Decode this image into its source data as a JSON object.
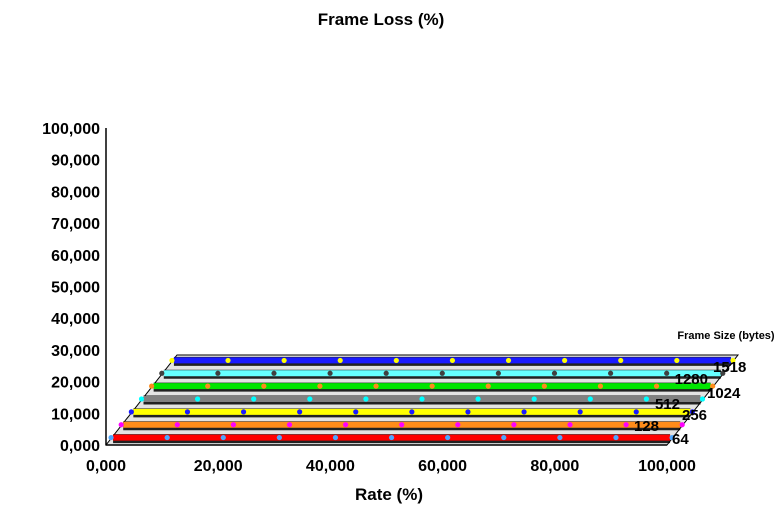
{
  "chart_data": {
    "type": "line",
    "title": "Frame Loss (%)",
    "xlabel": "Rate (%)",
    "ylabel": "",
    "depth_title": "Frame Size (bytes)",
    "xlim": [
      0,
      100
    ],
    "ylim": [
      0,
      100
    ],
    "x_tick_labels": [
      "0,000",
      "20,000",
      "40,000",
      "60,000",
      "80,000",
      "100,000"
    ],
    "y_tick_labels": [
      "0,000",
      "10,000",
      "20,000",
      "30,000",
      "40,000",
      "50,000",
      "60,000",
      "70,000",
      "80,000",
      "90,000",
      "100,000"
    ],
    "x": [
      10,
      20,
      30,
      40,
      50,
      60,
      70,
      80,
      90,
      100
    ],
    "series": [
      {
        "name": "64",
        "color": "#ff0000",
        "marker_color": "#4da6ff",
        "values": [
          0,
          0,
          0,
          0,
          0,
          0,
          0,
          0,
          0,
          0
        ]
      },
      {
        "name": "128",
        "color": "#ff8c1a",
        "marker_color": "#ff00ff",
        "values": [
          0,
          0,
          0,
          0,
          0,
          0,
          0,
          0,
          0,
          0
        ]
      },
      {
        "name": "256",
        "color": "#ffff00",
        "marker_color": "#1a1aff",
        "values": [
          0,
          0,
          0,
          0,
          0,
          0,
          0,
          0,
          0,
          0
        ]
      },
      {
        "name": "512",
        "color": "#808080",
        "marker_color": "#00ffff",
        "values": [
          0,
          0,
          0,
          0,
          0,
          0,
          0,
          0,
          0,
          0
        ]
      },
      {
        "name": "1024",
        "color": "#00e600",
        "marker_color": "#ff8c1a",
        "values": [
          0,
          0,
          0,
          0,
          0,
          0,
          0,
          0,
          0,
          0
        ]
      },
      {
        "name": "1280",
        "color": "#66ffff",
        "marker_color": "#404040",
        "values": [
          0,
          0,
          0,
          0,
          0,
          0,
          0,
          0,
          0,
          0
        ]
      },
      {
        "name": "1518",
        "color": "#1a1aff",
        "marker_color": "#ffff00",
        "values": [
          0,
          0,
          0,
          0,
          0,
          0,
          0,
          0,
          0,
          0
        ]
      }
    ]
  }
}
